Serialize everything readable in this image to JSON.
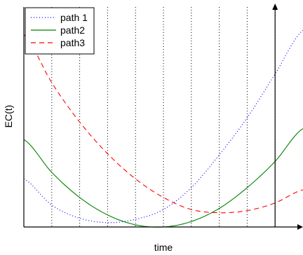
{
  "chart_data": {
    "type": "line",
    "title": "",
    "xlabel": "time",
    "ylabel": "EC(t)",
    "xlim": [
      0,
      1
    ],
    "ylim": [
      0,
      1
    ],
    "grid": "vertical-dotted",
    "gridlines_x": [
      0.1,
      0.2,
      0.3,
      0.4,
      0.5,
      0.6,
      0.7,
      0.8,
      0.9
    ],
    "marker_line_x": 0.9,
    "legend_position": "top-left",
    "series": [
      {
        "name": "path 1",
        "color": "#0000ff",
        "style": "dotted",
        "x": [
          0,
          0.1,
          0.2,
          0.3,
          0.4,
          0.5,
          0.6,
          0.7,
          0.8,
          0.9,
          1.0
        ],
        "y": [
          0.22,
          0.1,
          0.04,
          0.02,
          0.035,
          0.08,
          0.18,
          0.33,
          0.5,
          0.7,
          0.9
        ]
      },
      {
        "name": "path2",
        "color": "#008000",
        "style": "solid",
        "x": [
          0,
          0.1,
          0.2,
          0.3,
          0.4,
          0.5,
          0.6,
          0.7,
          0.8,
          0.9,
          1.0
        ],
        "y": [
          0.4,
          0.25,
          0.135,
          0.055,
          0.01,
          0.0,
          0.025,
          0.085,
          0.18,
          0.3,
          0.45
        ]
      },
      {
        "name": "path3",
        "color": "#ff0000",
        "style": "dashed",
        "x": [
          0,
          0.1,
          0.2,
          0.3,
          0.4,
          0.5,
          0.6,
          0.7,
          0.8,
          0.9,
          1.0
        ],
        "y": [
          0.88,
          0.66,
          0.48,
          0.335,
          0.22,
          0.135,
          0.08,
          0.065,
          0.075,
          0.11,
          0.17
        ]
      }
    ]
  }
}
